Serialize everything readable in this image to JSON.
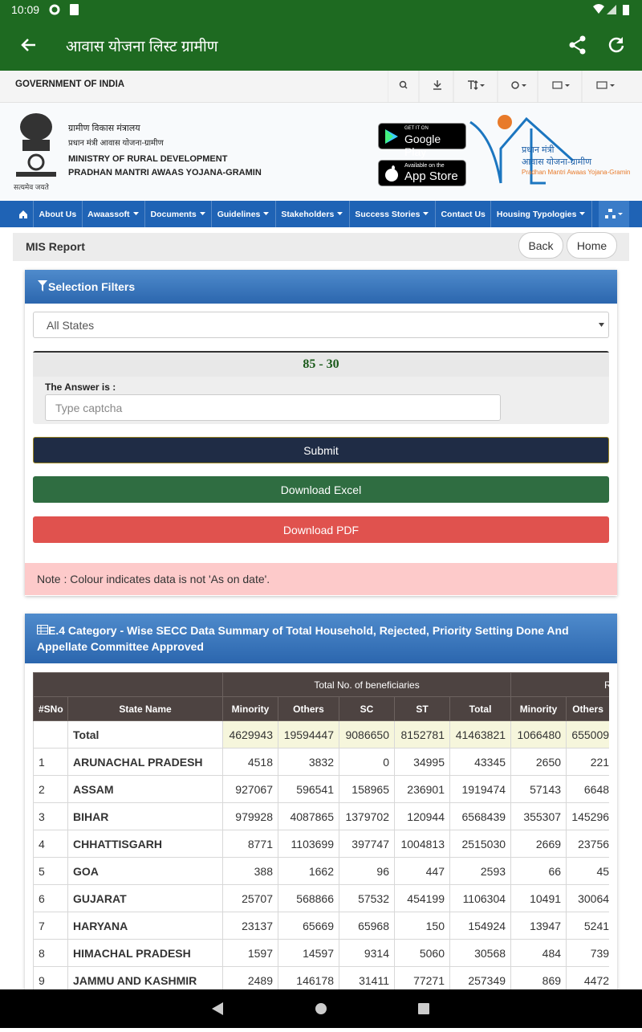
{
  "status_bar": {
    "time": "10:09"
  },
  "app_bar": {
    "title": "आवास योजना लिस्ट ग्रामीण"
  },
  "gov_bar": {
    "label": "GOVERNMENT OF INDIA"
  },
  "header": {
    "motto": "सत्यमेव जयते",
    "ministry_hindi": "ग्रामीण विकास मंत्रालय",
    "scheme_hindi": "प्रधान मंत्री आवास योजना-ग्रामीण",
    "ministry": "MINISTRY OF RURAL DEVELOPMENT",
    "scheme": "PRADHAN MANTRI AWAAS YOJANA-GRAMIN",
    "google_play": {
      "small": "GET IT ON",
      "big": "Google Play"
    },
    "app_store": {
      "small": "Available on the",
      "big": "App Store"
    },
    "logo": {
      "line1": "प्रधान मंत्री",
      "line2": "आवास योजना-ग्रामीण",
      "line3": "Pradhan Mantri Awaas Yojana-Gramin"
    }
  },
  "nav": {
    "items": [
      {
        "label": "About Us"
      },
      {
        "label": "Awaassoft",
        "dropdown": true
      },
      {
        "label": "Documents",
        "dropdown": true
      },
      {
        "label": "Guidelines",
        "dropdown": true
      },
      {
        "label": "Stakeholders",
        "dropdown": true
      },
      {
        "label": "Success Stories",
        "dropdown": true
      },
      {
        "label": "Contact Us"
      },
      {
        "label": "Housing Typologies",
        "dropdown": true
      }
    ]
  },
  "mis": {
    "title": "MIS Report",
    "buttons": [
      "Back",
      "Home"
    ]
  },
  "filters": {
    "title": "Selection Filters",
    "state_select": "All States",
    "captcha": "85 - 30",
    "answer_label": "The Answer is :",
    "answer_placeholder": "Type captcha",
    "submit": "Submit",
    "download_excel": "Download Excel",
    "download_pdf": "Download PDF",
    "note": "Note : Colour indicates data is not 'As on date'."
  },
  "table": {
    "title": "E.4 Category - Wise SECC Data Summary of Total Household, Rejected, Priority Setting Done And Appellate Committee Approved",
    "group_headers": [
      "Total No. of beneficiaries",
      "R"
    ],
    "columns": [
      "#SNo",
      "State Name",
      "Minority",
      "Others",
      "SC",
      "ST",
      "Total",
      "Minority",
      "Others"
    ],
    "total": {
      "state": "Total",
      "values": [
        4629943,
        19594447,
        9086650,
        8152781,
        41463821,
        1066480,
        655009
      ]
    },
    "rows": [
      {
        "sno": "1",
        "state": "ARUNACHAL PRADESH",
        "values": [
          4518,
          3832,
          0,
          34995,
          43345,
          2650,
          221
        ]
      },
      {
        "sno": "2",
        "state": "ASSAM",
        "values": [
          927067,
          596541,
          158965,
          236901,
          1919474,
          57143,
          6648
        ]
      },
      {
        "sno": "3",
        "state": "BIHAR",
        "values": [
          979928,
          4087865,
          1379702,
          120944,
          6568439,
          355307,
          145296
        ]
      },
      {
        "sno": "4",
        "state": "CHHATTISGARH",
        "values": [
          8771,
          1103699,
          397747,
          1004813,
          2515030,
          2669,
          23756
        ]
      },
      {
        "sno": "5",
        "state": "GOA",
        "values": [
          388,
          1662,
          96,
          447,
          2593,
          66,
          45
        ]
      },
      {
        "sno": "6",
        "state": "GUJARAT",
        "values": [
          25707,
          568866,
          57532,
          454199,
          1106304,
          10491,
          30064
        ]
      },
      {
        "sno": "7",
        "state": "HARYANA",
        "values": [
          23137,
          65669,
          65968,
          150,
          154924,
          13947,
          5241
        ]
      },
      {
        "sno": "8",
        "state": "HIMACHAL PRADESH",
        "values": [
          1597,
          14597,
          9314,
          5060,
          30568,
          484,
          739
        ]
      },
      {
        "sno": "9",
        "state": "JAMMU AND KASHMIR",
        "values": [
          2489,
          146178,
          31411,
          77271,
          257349,
          869,
          4472
        ]
      }
    ]
  }
}
